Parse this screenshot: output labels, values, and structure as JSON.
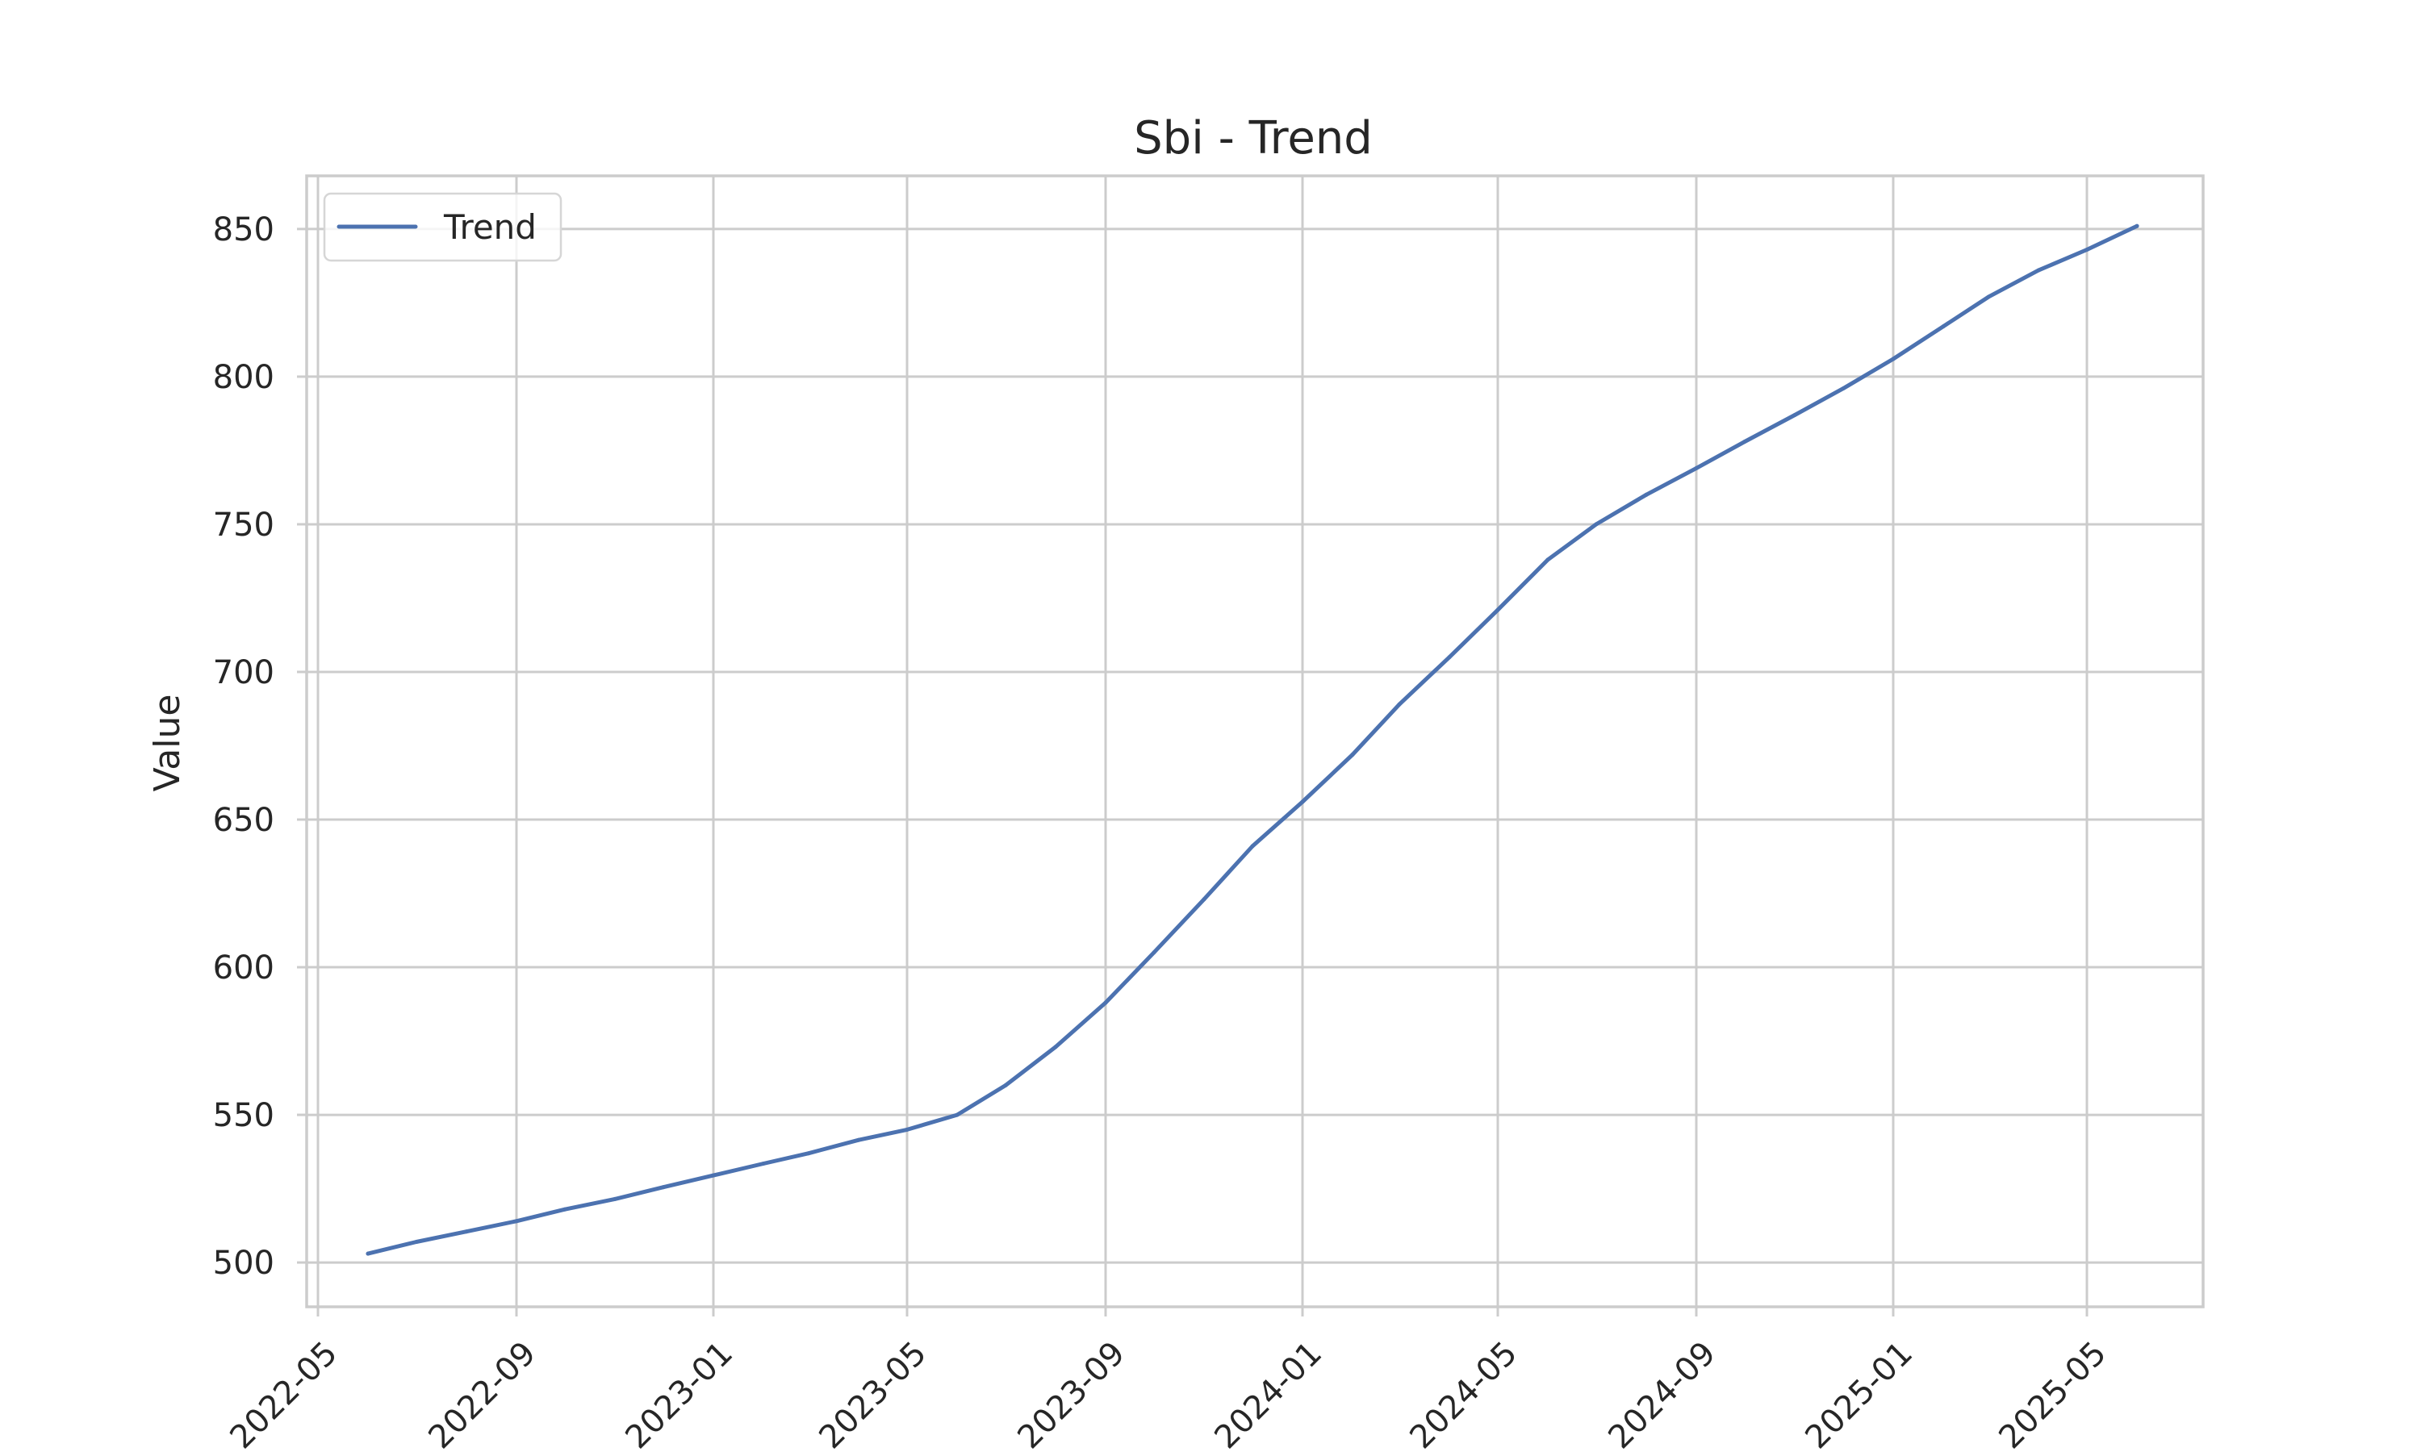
{
  "chart_data": {
    "type": "line",
    "title": "Sbi - Trend",
    "xlabel": "",
    "ylabel": "Value",
    "x_ticks": [
      "2022-05",
      "2022-09",
      "2023-01",
      "2023-05",
      "2023-09",
      "2024-01",
      "2024-05",
      "2024-09",
      "2025-01",
      "2025-05"
    ],
    "y_ticks": [
      500,
      550,
      600,
      650,
      700,
      750,
      800,
      850
    ],
    "xlim": [
      "2022-04-24",
      "2025-07-12"
    ],
    "ylim": [
      485,
      868
    ],
    "grid": true,
    "legend_position": "top-left",
    "series": [
      {
        "name": "Trend",
        "color": "#4c72b0",
        "x": [
          "2022-06-01",
          "2022-07-01",
          "2022-08-01",
          "2022-09-01",
          "2022-10-01",
          "2022-11-01",
          "2022-12-01",
          "2023-01-01",
          "2023-02-01",
          "2023-03-01",
          "2023-04-01",
          "2023-05-01",
          "2023-06-01",
          "2023-07-01",
          "2023-08-01",
          "2023-09-01",
          "2023-10-01",
          "2023-11-01",
          "2023-12-01",
          "2024-01-01",
          "2024-02-01",
          "2024-03-01",
          "2024-04-01",
          "2024-05-01",
          "2024-06-01",
          "2024-07-01",
          "2024-08-01",
          "2024-09-01",
          "2024-10-01",
          "2024-11-01",
          "2024-12-01",
          "2025-01-01",
          "2025-02-01",
          "2025-03-01",
          "2025-04-01",
          "2025-05-01",
          "2025-06-01"
        ],
        "values": [
          503,
          507,
          510.5,
          514,
          518,
          521.5,
          525.5,
          529.5,
          533.5,
          537,
          541.5,
          545,
          550,
          560,
          573,
          588,
          605,
          623,
          641,
          656,
          672,
          689,
          705,
          721,
          738,
          750,
          760,
          769,
          778,
          787,
          796,
          806,
          817,
          827,
          836,
          843,
          851
        ]
      }
    ]
  }
}
